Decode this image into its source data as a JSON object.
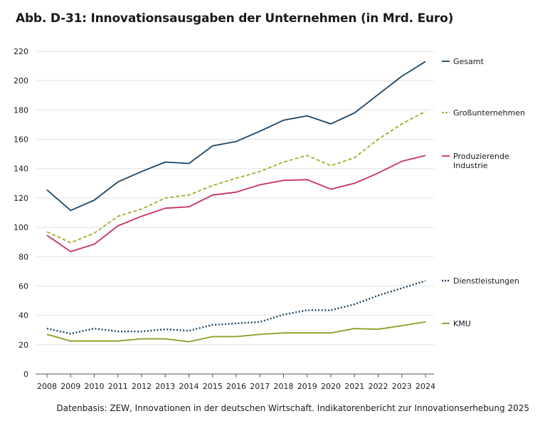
{
  "title": "Abb. D-31: Innovationsausgaben der Unternehmen (in Mrd. Euro)",
  "source": "Datenbasis: ZEW, Innovationen in der deutschen Wirtschaft. Indikatorenbericht zur Innovationserhebung 2025",
  "chart_data": {
    "type": "line",
    "x": [
      "2008",
      "2009",
      "2010",
      "2011",
      "2012",
      "2013",
      "2014",
      "2015",
      "2016",
      "2017",
      "2018",
      "2019",
      "2020",
      "2021",
      "2022",
      "2023",
      "2024"
    ],
    "ylim": [
      0,
      220
    ],
    "yticks": [
      0,
      20,
      40,
      60,
      80,
      100,
      120,
      140,
      160,
      180,
      200,
      220
    ],
    "grid": "horizontal",
    "legend_placement": "right, at line ends",
    "series": [
      {
        "name": "Gesamt",
        "color": "#1b4565",
        "style": "solid",
        "values": [
          125.5,
          111.5,
          118.5,
          131,
          138,
          144.5,
          143.5,
          155.5,
          158.5,
          165.5,
          173,
          176,
          170.5,
          178,
          190.5,
          203,
          213
        ]
      },
      {
        "name": "Großunternehmen",
        "color": "#9fad2c",
        "style": "dashed",
        "values": [
          97,
          89.5,
          96,
          107.5,
          112.5,
          120,
          122,
          128.5,
          133.5,
          138,
          144.5,
          149,
          142,
          147.5,
          160,
          170.5,
          179
        ]
      },
      {
        "name": "Produzierende Industrie",
        "label_lines": [
          "Produzierende",
          "Industrie"
        ],
        "color": "#c8315e",
        "style": "solid",
        "values": [
          94.5,
          83.5,
          88.5,
          101,
          107.5,
          113,
          114,
          122,
          124,
          129,
          132,
          132.5,
          126,
          130,
          137,
          145,
          149
        ]
      },
      {
        "name": "Dienstleistungen",
        "color": "#1b4565",
        "style": "dotted",
        "values": [
          31,
          27.5,
          31,
          29,
          29,
          30.5,
          29.5,
          33.5,
          34.5,
          35.5,
          40.5,
          43.5,
          43.5,
          47.5,
          53.5,
          58.5,
          63.5
        ]
      },
      {
        "name": "KMU",
        "color": "#8f9a1e",
        "style": "solid",
        "values": [
          27,
          22.5,
          22.5,
          22.5,
          24,
          24,
          22,
          25.5,
          25.5,
          27,
          28,
          28,
          28,
          31,
          30.5,
          33,
          35.5
        ]
      }
    ]
  }
}
